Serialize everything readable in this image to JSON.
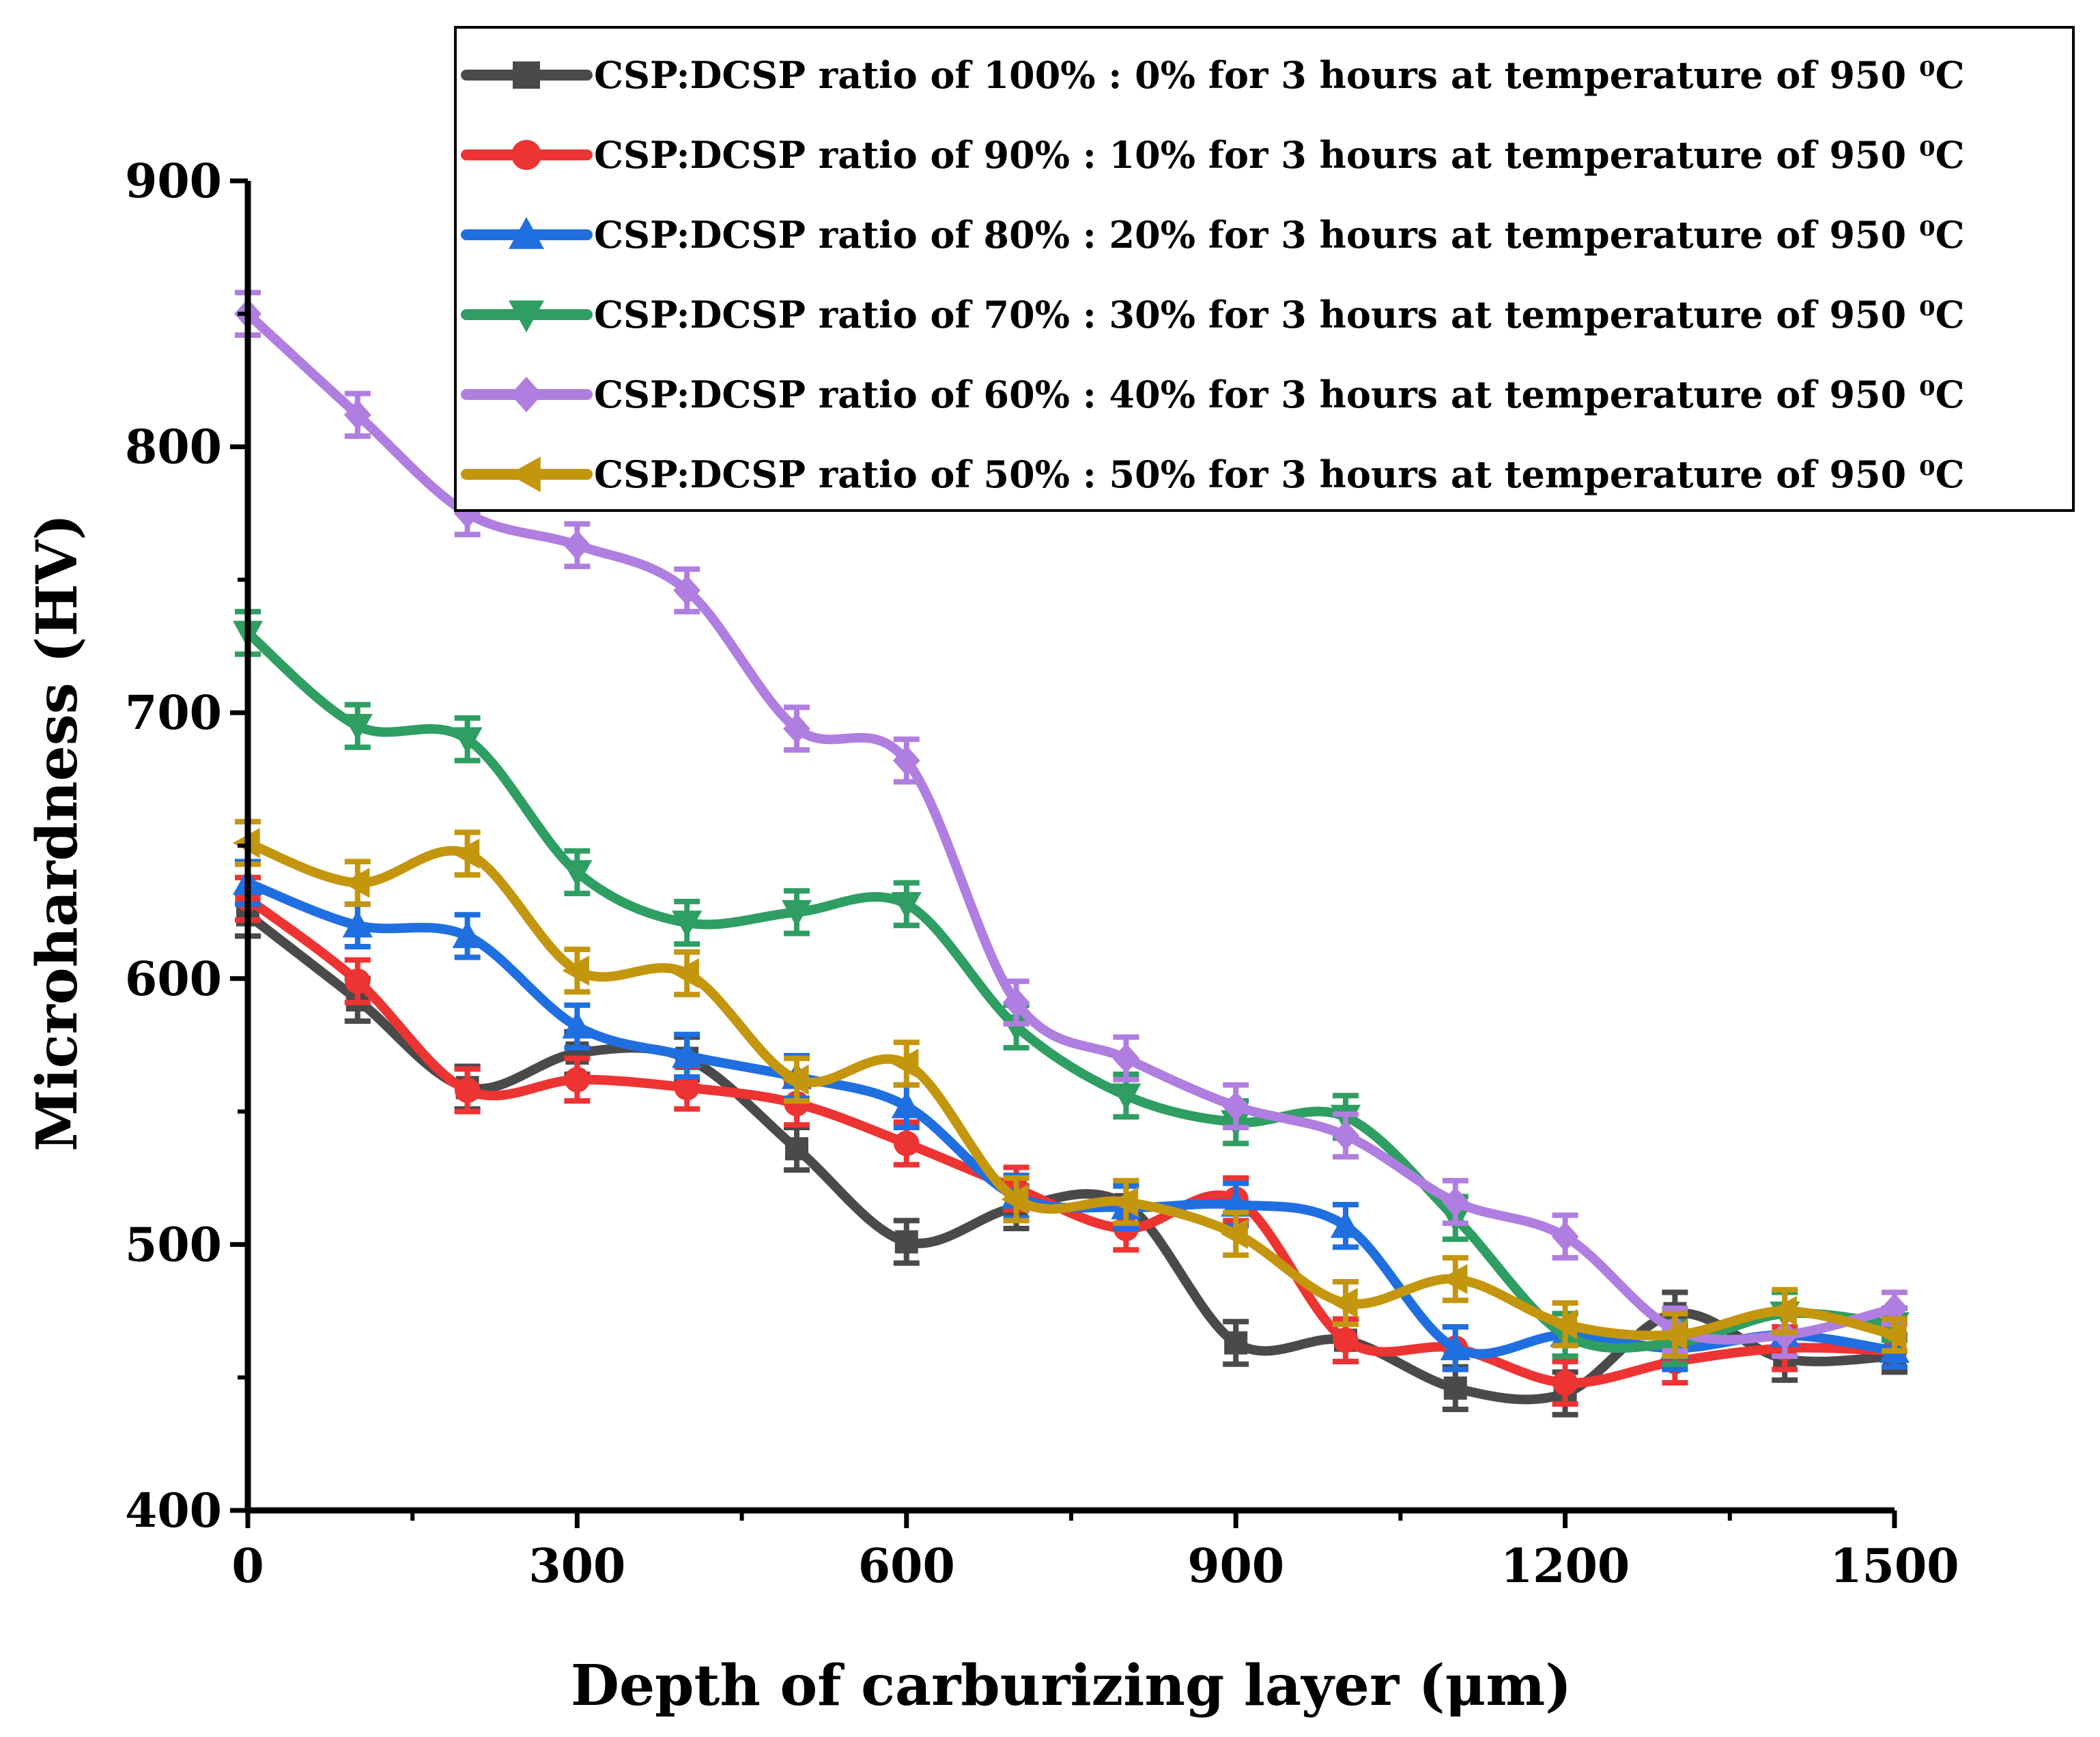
{
  "chart_data": {
    "type": "line",
    "title": "",
    "xlabel": "Depth of carburizing layer (μm)",
    "ylabel": "Microhardness (HV)",
    "xlim": [
      0,
      1500
    ],
    "ylim": [
      400,
      900
    ],
    "xticks": [
      0,
      300,
      600,
      900,
      1200,
      1500
    ],
    "yticks": [
      400,
      500,
      600,
      700,
      800,
      900
    ],
    "xtick_labels": [
      "0",
      "300",
      "600",
      "900",
      "1200",
      "1500"
    ],
    "ytick_labels": [
      "400",
      "500",
      "600",
      "700",
      "800",
      "900"
    ],
    "grid": false,
    "legend_position": "top-right",
    "x": [
      0,
      100,
      200,
      300,
      400,
      500,
      600,
      700,
      800,
      900,
      1000,
      1100,
      1200,
      1300,
      1400,
      1500
    ],
    "series": [
      {
        "name": "CSP:DCSP ratio of 100% : 0% for 3 hours at temperature of 950 ⁰C",
        "color": "#4a4a4a",
        "marker": "square",
        "values": [
          624,
          592,
          559,
          572,
          570,
          536,
          501,
          514,
          515,
          463,
          464,
          446,
          444,
          474,
          457,
          458
        ],
        "error": [
          8,
          8,
          8,
          8,
          8,
          8,
          8,
          8,
          8,
          8,
          8,
          8,
          8,
          8,
          8,
          6
        ]
      },
      {
        "name": "CSP:DCSP ratio of 90% : 10% for 3 hours at temperature of 950 ⁰C",
        "color": "#ee3333",
        "marker": "circle",
        "values": [
          630,
          599,
          558,
          562,
          559,
          553,
          538,
          521,
          506,
          517,
          464,
          461,
          448,
          456,
          461,
          460
        ],
        "error": [
          8,
          8,
          8,
          8,
          8,
          8,
          8,
          8,
          8,
          8,
          8,
          8,
          8,
          8,
          8,
          6
        ]
      },
      {
        "name": "CSP:DCSP ratio of 80% : 20% for 3 hours at temperature of 950 ⁰C",
        "color": "#1f6fe0",
        "marker": "triangle-up",
        "values": [
          636,
          620,
          616,
          582,
          571,
          563,
          552,
          518,
          514,
          515,
          507,
          461,
          466,
          461,
          466,
          460
        ],
        "error": [
          8,
          8,
          8,
          8,
          8,
          8,
          8,
          8,
          8,
          8,
          8,
          8,
          8,
          8,
          8,
          6
        ]
      },
      {
        "name": "CSP:DCSP ratio of 70% : 30% for 3 hours at temperature of 950 ⁰C",
        "color": "#2e9e62",
        "marker": "triangle-down",
        "values": [
          730,
          695,
          690,
          640,
          621,
          625,
          628,
          582,
          556,
          546,
          548,
          510,
          466,
          463,
          474,
          470
        ],
        "error": [
          8,
          8,
          8,
          8,
          8,
          8,
          8,
          8,
          8,
          8,
          8,
          8,
          8,
          8,
          8,
          6
        ]
      },
      {
        "name": "CSP:DCSP ratio of 60% : 40% for 3 hours at temperature of 950 ⁰C",
        "color": "#b07ee0",
        "marker": "diamond",
        "values": [
          850,
          812,
          775,
          763,
          746,
          694,
          682,
          591,
          570,
          552,
          541,
          516,
          503,
          468,
          466,
          476
        ],
        "error": [
          8,
          8,
          8,
          8,
          8,
          8,
          8,
          8,
          8,
          8,
          8,
          8,
          8,
          8,
          8,
          6
        ]
      },
      {
        "name": "CSP:DCSP ratio of 50% : 50% for 3 hours at temperature of 950 ⁰C",
        "color": "#c4960e",
        "marker": "triangle-left",
        "values": [
          651,
          636,
          647,
          603,
          602,
          562,
          568,
          517,
          516,
          504,
          478,
          487,
          470,
          466,
          475,
          466
        ],
        "error": [
          8,
          8,
          8,
          8,
          8,
          8,
          8,
          8,
          8,
          8,
          8,
          8,
          8,
          8,
          8,
          6
        ]
      }
    ]
  }
}
